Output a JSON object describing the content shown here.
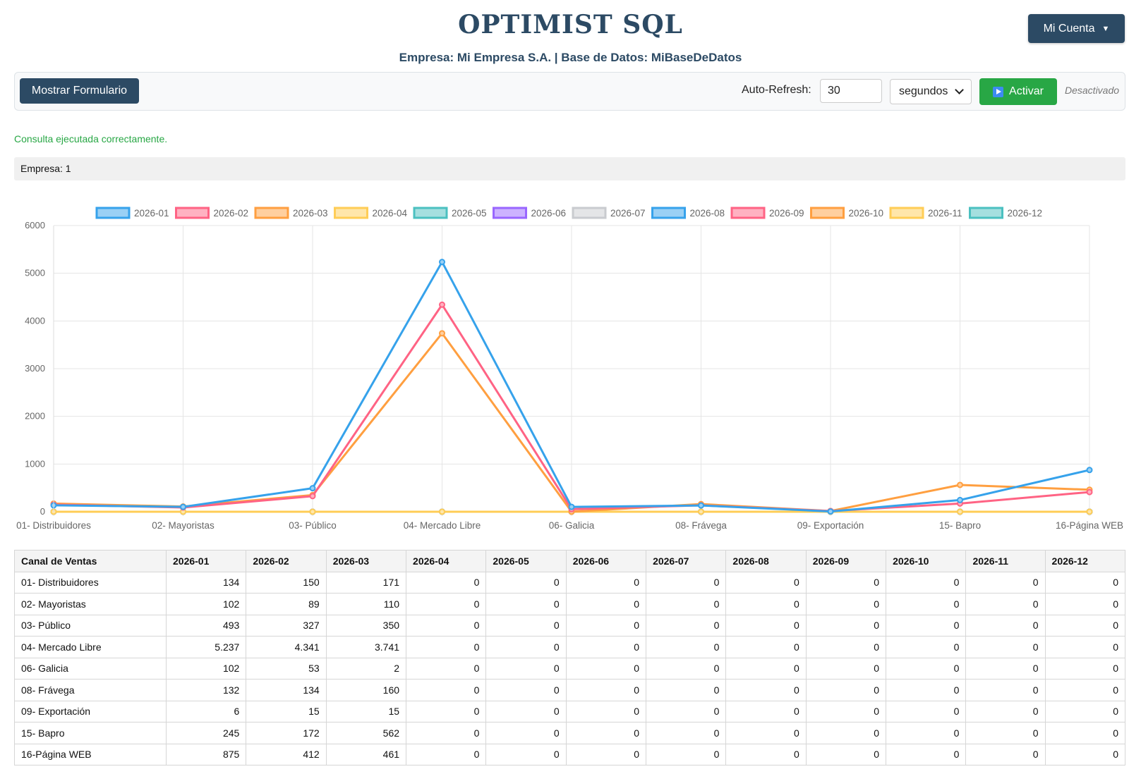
{
  "header": {
    "app_title": "OPTIMIST SQL",
    "subtitle": "Empresa: Mi Empresa S.A. | Base de Datos: MiBaseDeDatos",
    "account_label": "Mi Cuenta",
    "account_icon": "caret-down-icon"
  },
  "toolbar": {
    "show_form_label": "Mostrar Formulario",
    "auto_refresh_label": "Auto-Refresh:",
    "interval_value": "30",
    "unit_selected": "segundos",
    "activate_label": "Activar",
    "activate_icon": "play-icon",
    "status": "Desactivado"
  },
  "message": "Consulta ejecutada correctamente.",
  "company_info": "Empresa: 1",
  "chart_data": {
    "type": "line",
    "categories": [
      "01- Distribuidores",
      "02- Mayoristas",
      "03- Público",
      "04- Mercado Libre",
      "06- Galicia",
      "08- Frávega",
      "09- Exportación",
      "15- Bapro",
      "16-Página WEB"
    ],
    "ylim": [
      0,
      6000
    ],
    "yticks": [
      0,
      1000,
      2000,
      3000,
      4000,
      5000,
      6000
    ],
    "grid": true,
    "legend_position": "top",
    "series": [
      {
        "name": "2026-01",
        "color": "#36a2eb",
        "fill": "#9ad0f5",
        "values": [
          134,
          102,
          493,
          5237,
          102,
          132,
          6,
          245,
          875
        ]
      },
      {
        "name": "2026-02",
        "color": "#ff6384",
        "fill": "#ffb1c1",
        "values": [
          150,
          89,
          327,
          4341,
          53,
          134,
          15,
          172,
          412
        ]
      },
      {
        "name": "2026-03",
        "color": "#ff9f40",
        "fill": "#ffcf9f",
        "values": [
          171,
          110,
          350,
          3741,
          2,
          160,
          15,
          562,
          461
        ]
      },
      {
        "name": "2026-04",
        "color": "#ffcd56",
        "fill": "#ffe6aa",
        "values": [
          0,
          0,
          0,
          0,
          0,
          0,
          0,
          0,
          0
        ]
      },
      {
        "name": "2026-05",
        "color": "#4bc0c0",
        "fill": "#a5dfdf",
        "values": [
          0,
          0,
          0,
          0,
          0,
          0,
          0,
          0,
          0
        ]
      },
      {
        "name": "2026-06",
        "color": "#9966ff",
        "fill": "#ccb2ff",
        "values": [
          0,
          0,
          0,
          0,
          0,
          0,
          0,
          0,
          0
        ]
      },
      {
        "name": "2026-07",
        "color": "#c9cbcf",
        "fill": "#e4e5e7",
        "values": [
          0,
          0,
          0,
          0,
          0,
          0,
          0,
          0,
          0
        ]
      },
      {
        "name": "2026-08",
        "color": "#36a2eb",
        "fill": "#9ad0f5",
        "values": [
          0,
          0,
          0,
          0,
          0,
          0,
          0,
          0,
          0
        ]
      },
      {
        "name": "2026-09",
        "color": "#ff6384",
        "fill": "#ffb1c1",
        "values": [
          0,
          0,
          0,
          0,
          0,
          0,
          0,
          0,
          0
        ]
      },
      {
        "name": "2026-10",
        "color": "#ff9f40",
        "fill": "#ffcf9f",
        "values": [
          0,
          0,
          0,
          0,
          0,
          0,
          0,
          0,
          0
        ]
      },
      {
        "name": "2026-11",
        "color": "#ffcd56",
        "fill": "#ffe6aa",
        "values": [
          0,
          0,
          0,
          0,
          0,
          0,
          0,
          0,
          0
        ]
      },
      {
        "name": "2026-12",
        "color": "#4bc0c0",
        "fill": "#a5dfdf",
        "values": [
          0,
          0,
          0,
          0,
          0,
          0,
          0,
          0,
          0
        ]
      }
    ]
  },
  "table": {
    "headers": [
      "Canal de Ventas",
      "2026-01",
      "2026-02",
      "2026-03",
      "2026-04",
      "2026-05",
      "2026-06",
      "2026-07",
      "2026-08",
      "2026-09",
      "2026-10",
      "2026-11",
      "2026-12"
    ],
    "rows": [
      [
        "01- Distribuidores",
        "134",
        "150",
        "171",
        "0",
        "0",
        "0",
        "0",
        "0",
        "0",
        "0",
        "0",
        "0"
      ],
      [
        "02- Mayoristas",
        "102",
        "89",
        "110",
        "0",
        "0",
        "0",
        "0",
        "0",
        "0",
        "0",
        "0",
        "0"
      ],
      [
        "03- Público",
        "493",
        "327",
        "350",
        "0",
        "0",
        "0",
        "0",
        "0",
        "0",
        "0",
        "0",
        "0"
      ],
      [
        "04- Mercado Libre",
        "5.237",
        "4.341",
        "3.741",
        "0",
        "0",
        "0",
        "0",
        "0",
        "0",
        "0",
        "0",
        "0"
      ],
      [
        "06- Galicia",
        "102",
        "53",
        "2",
        "0",
        "0",
        "0",
        "0",
        "0",
        "0",
        "0",
        "0",
        "0"
      ],
      [
        "08- Frávega",
        "132",
        "134",
        "160",
        "0",
        "0",
        "0",
        "0",
        "0",
        "0",
        "0",
        "0",
        "0"
      ],
      [
        "09- Exportación",
        "6",
        "15",
        "15",
        "0",
        "0",
        "0",
        "0",
        "0",
        "0",
        "0",
        "0",
        "0"
      ],
      [
        "15- Bapro",
        "245",
        "172",
        "562",
        "0",
        "0",
        "0",
        "0",
        "0",
        "0",
        "0",
        "0",
        "0"
      ],
      [
        "16-Página WEB",
        "875",
        "412",
        "461",
        "0",
        "0",
        "0",
        "0",
        "0",
        "0",
        "0",
        "0",
        "0"
      ]
    ]
  }
}
